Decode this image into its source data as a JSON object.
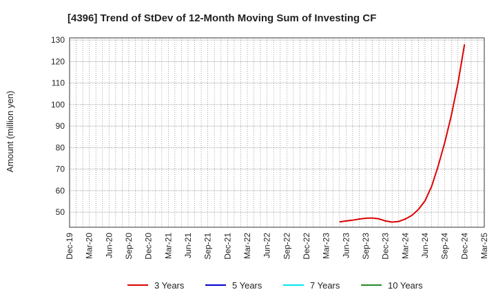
{
  "chart_data": {
    "type": "line",
    "title": "[4396]  Trend of StDev of 12-Month Moving Sum of Investing CF",
    "xlabel": "",
    "ylabel": "Amount (million yen)",
    "ylim": [
      43,
      131
    ],
    "yticks": [
      50,
      60,
      70,
      80,
      90,
      100,
      110,
      120,
      130
    ],
    "grid": true,
    "legend_position": "bottom",
    "x_start": "Dec-19",
    "x_end": "Mar-25",
    "categories": [
      "Dec-19",
      "Mar-20",
      "Jun-20",
      "Sep-20",
      "Dec-20",
      "Mar-21",
      "Jun-21",
      "Sep-21",
      "Dec-21",
      "Mar-22",
      "Jun-22",
      "Sep-22",
      "Dec-22",
      "Mar-23",
      "Jun-23",
      "Sep-23",
      "Dec-23",
      "Mar-24",
      "Jun-24",
      "Sep-24",
      "Dec-24",
      "Mar-25"
    ],
    "series": [
      {
        "name": "3 Years",
        "color": "#dd0000",
        "points": [
          {
            "x": "May-23",
            "y": 45.5
          },
          {
            "x": "Jun-23",
            "y": 45.9
          },
          {
            "x": "Jul-23",
            "y": 46.3
          },
          {
            "x": "Aug-23",
            "y": 46.8
          },
          {
            "x": "Sep-23",
            "y": 47.2
          },
          {
            "x": "Oct-23",
            "y": 47.3
          },
          {
            "x": "Nov-23",
            "y": 46.9
          },
          {
            "x": "Dec-23",
            "y": 45.9
          },
          {
            "x": "Jan-24",
            "y": 45.4
          },
          {
            "x": "Feb-24",
            "y": 45.7
          },
          {
            "x": "Mar-24",
            "y": 46.8
          },
          {
            "x": "Apr-24",
            "y": 48.5
          },
          {
            "x": "May-24",
            "y": 51.3
          },
          {
            "x": "Jun-24",
            "y": 55.3
          },
          {
            "x": "Jul-24",
            "y": 62.0
          },
          {
            "x": "Aug-24",
            "y": 71.5
          },
          {
            "x": "Sep-24",
            "y": 82.5
          },
          {
            "x": "Oct-24",
            "y": 95.0
          },
          {
            "x": "Nov-24",
            "y": 110.0
          },
          {
            "x": "Dec-24",
            "y": 128.0
          }
        ]
      },
      {
        "name": "5 Years",
        "color": "#0000cc",
        "points": []
      },
      {
        "name": "7 Years",
        "color": "#00e5ee",
        "points": []
      },
      {
        "name": "10 Years",
        "color": "#228822",
        "points": []
      }
    ]
  }
}
